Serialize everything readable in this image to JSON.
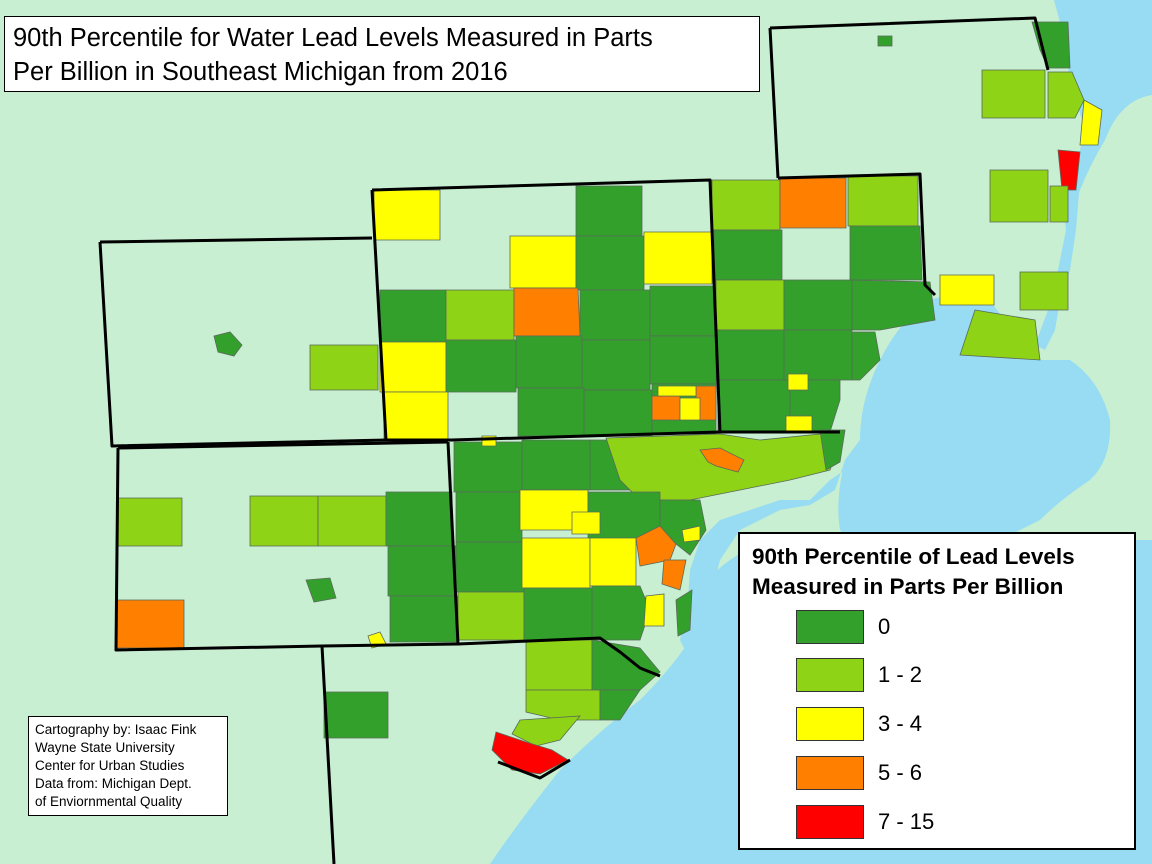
{
  "map": {
    "title_lines": [
      "90th Percentile for Water Lead Levels Measured in Parts",
      "Per Billion in Southeast Michigan from 2016"
    ],
    "credits": [
      "Cartography by: Isaac Fink",
      "Wayne State University",
      "Center for Urban Studies",
      "Data from: Michigan Dept.",
      "of Enviornmental Quality"
    ],
    "colors": {
      "land": "#c8efd2",
      "water": "#97dcf2",
      "border": "#000000",
      "unit_outline": "#5a6a5a"
    }
  },
  "legend": {
    "title_lines": [
      "90th Percentile of Lead Levels",
      "Measured in Parts Per Billion"
    ],
    "items": [
      {
        "label": "0",
        "color": "#33a02c"
      },
      {
        "label": "1 - 2",
        "color": "#8ed315"
      },
      {
        "label": "3 - 4",
        "color": "#ffff00"
      },
      {
        "label": "5 - 6",
        "color": "#ff7f00"
      },
      {
        "label": "7 - 15",
        "color": "#ff0000"
      }
    ]
  }
}
